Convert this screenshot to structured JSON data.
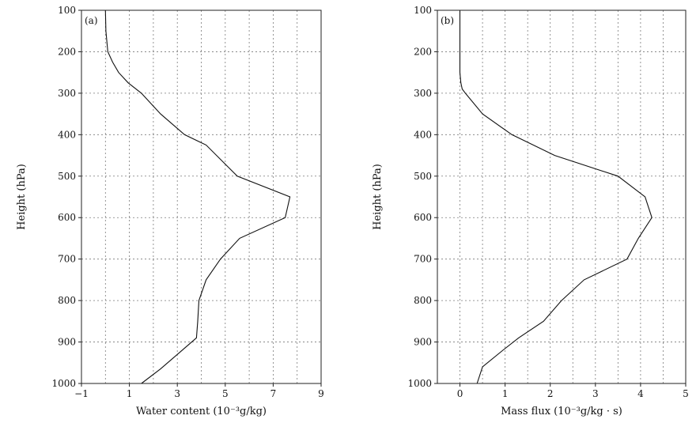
{
  "chart_data": [
    {
      "type": "line",
      "panel_label": "(a)",
      "title": "",
      "xlabel": "Water content (10⁻³g/kg)",
      "ylabel": "Height (hPa)",
      "xlim": [
        -1,
        9
      ],
      "ylim": [
        100,
        1000
      ],
      "y_inverted": true,
      "grid": true,
      "xticks": [
        -1,
        1,
        3,
        5,
        7,
        9
      ],
      "xtick_labels": [
        "−1",
        "1",
        "3",
        "5",
        "7",
        "9"
      ],
      "xgrid": [
        0,
        1,
        2,
        3,
        4,
        5,
        6,
        7,
        8
      ],
      "yticks": [
        100,
        200,
        300,
        400,
        500,
        600,
        700,
        800,
        900,
        1000
      ],
      "ytick_labels": [
        "100",
        "200",
        "300",
        "400",
        "500",
        "600",
        "700",
        "800",
        "900",
        "1000"
      ],
      "series": [
        {
          "x": [
            0.0,
            0.02,
            0.1,
            0.3,
            0.55,
            0.95,
            1.5,
            2.3,
            3.3,
            4.2,
            5.5,
            7.7,
            7.5,
            5.6,
            4.8,
            4.2,
            3.9,
            3.85,
            3.8,
            3.1,
            2.3,
            1.5
          ],
          "y": [
            100,
            150,
            200,
            225,
            250,
            275,
            300,
            350,
            400,
            425,
            500,
            550,
            600,
            650,
            700,
            750,
            800,
            850,
            890,
            925,
            965,
            1000
          ]
        }
      ]
    },
    {
      "type": "line",
      "panel_label": "(b)",
      "title": "",
      "xlabel": "Mass flux (10⁻³g/kg · s)",
      "ylabel": "Height (hPa)",
      "xlim": [
        -0.5,
        5
      ],
      "ylim": [
        100,
        1000
      ],
      "y_inverted": true,
      "grid": true,
      "xticks": [
        0,
        1,
        2,
        3,
        4,
        5
      ],
      "xtick_labels": [
        "0",
        "1",
        "2",
        "3",
        "4",
        "5"
      ],
      "xgrid": [
        0,
        0.5,
        1,
        1.5,
        2,
        2.5,
        3,
        3.5,
        4,
        4.5
      ],
      "yticks": [
        100,
        200,
        300,
        400,
        500,
        600,
        700,
        800,
        900,
        1000
      ],
      "ytick_labels": [
        "100",
        "200",
        "300",
        "400",
        "500",
        "600",
        "700",
        "800",
        "900",
        "1000"
      ],
      "series": [
        {
          "x": [
            0.0,
            0.0,
            0.0,
            0.02,
            0.05,
            0.12,
            0.5,
            1.15,
            2.1,
            3.5,
            4.1,
            4.25,
            3.95,
            3.7,
            2.75,
            2.25,
            1.85,
            1.3,
            0.95,
            0.5,
            0.38
          ],
          "y": [
            100,
            200,
            250,
            275,
            290,
            300,
            350,
            400,
            450,
            500,
            550,
            600,
            650,
            700,
            750,
            800,
            850,
            890,
            920,
            960,
            1000
          ]
        }
      ]
    }
  ]
}
